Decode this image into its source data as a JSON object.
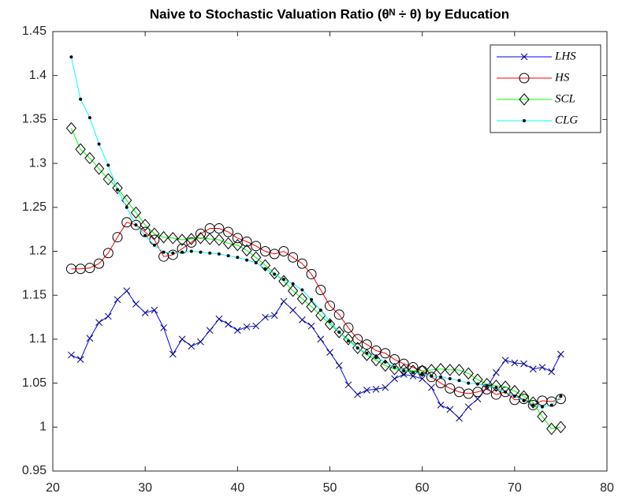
{
  "chart_data": {
    "type": "line",
    "title": "Naive to Stochastic Valuation Ratio (θᴺ ÷ θ) by Education",
    "x": [
      22,
      23,
      24,
      25,
      26,
      27,
      28,
      29,
      30,
      31,
      32,
      33,
      34,
      35,
      36,
      37,
      38,
      39,
      40,
      41,
      42,
      43,
      44,
      45,
      46,
      47,
      48,
      49,
      50,
      51,
      52,
      53,
      54,
      55,
      56,
      57,
      58,
      59,
      60,
      61,
      62,
      63,
      64,
      65,
      66,
      67,
      68,
      69,
      70,
      71,
      72,
      73,
      74,
      75
    ],
    "xlim": [
      20,
      80
    ],
    "xticks": [
      20,
      30,
      40,
      50,
      60,
      70,
      80
    ],
    "ylim": [
      0.95,
      1.45
    ],
    "yticks": [
      0.95,
      1,
      1.05,
      1.1,
      1.15,
      1.2,
      1.25,
      1.3,
      1.35,
      1.4,
      1.45
    ],
    "legend": "northeast",
    "series": [
      {
        "name": "LHS",
        "color": "#0000ff",
        "marker": "x",
        "marker_color": "#00007f",
        "values": [
          1.082,
          1.077,
          1.101,
          1.119,
          1.126,
          1.145,
          1.155,
          1.14,
          1.13,
          1.133,
          1.113,
          1.083,
          1.1,
          1.092,
          1.097,
          1.11,
          1.123,
          1.117,
          1.11,
          1.114,
          1.115,
          1.125,
          1.127,
          1.143,
          1.133,
          1.122,
          1.115,
          1.1,
          1.085,
          1.07,
          1.048,
          1.037,
          1.042,
          1.043,
          1.045,
          1.055,
          1.06,
          1.058,
          1.055,
          1.045,
          1.025,
          1.02,
          1.01,
          1.023,
          1.032,
          1.045,
          1.062,
          1.076,
          1.073,
          1.072,
          1.066,
          1.068,
          1.063,
          1.083
        ]
      },
      {
        "name": "HS",
        "color": "#ff0000",
        "marker": "o",
        "marker_color": "#000000",
        "values": [
          1.18,
          1.18,
          1.181,
          1.186,
          1.198,
          1.216,
          1.233,
          1.23,
          1.222,
          1.213,
          1.194,
          1.196,
          1.203,
          1.21,
          1.22,
          1.226,
          1.226,
          1.222,
          1.215,
          1.211,
          1.206,
          1.2,
          1.197,
          1.2,
          1.193,
          1.186,
          1.174,
          1.156,
          1.138,
          1.128,
          1.113,
          1.1,
          1.094,
          1.087,
          1.084,
          1.077,
          1.072,
          1.068,
          1.064,
          1.057,
          1.05,
          1.044,
          1.04,
          1.038,
          1.04,
          1.043,
          1.037,
          1.04,
          1.031,
          1.032,
          1.025,
          1.03,
          1.029,
          1.032
        ]
      },
      {
        "name": "SCL",
        "color": "#00ff00",
        "marker": "d",
        "marker_color": "#000000",
        "values": [
          1.34,
          1.316,
          1.306,
          1.294,
          1.282,
          1.272,
          1.258,
          1.244,
          1.23,
          1.22,
          1.216,
          1.215,
          1.213,
          1.214,
          1.215,
          1.214,
          1.213,
          1.209,
          1.207,
          1.201,
          1.193,
          1.184,
          1.175,
          1.166,
          1.155,
          1.146,
          1.137,
          1.127,
          1.117,
          1.108,
          1.1,
          1.09,
          1.082,
          1.076,
          1.07,
          1.066,
          1.065,
          1.064,
          1.064,
          1.065,
          1.066,
          1.065,
          1.065,
          1.061,
          1.054,
          1.049,
          1.047,
          1.046,
          1.041,
          1.035,
          1.028,
          1.012,
          0.998,
          1.0
        ]
      },
      {
        "name": "CLG",
        "color": "#00ffff",
        "marker": ".",
        "marker_color": "#000000",
        "values": [
          1.421,
          1.373,
          1.352,
          1.322,
          1.298,
          1.27,
          1.25,
          1.23,
          1.218,
          1.207,
          1.199,
          1.198,
          1.199,
          1.2,
          1.199,
          1.198,
          1.197,
          1.195,
          1.193,
          1.19,
          1.187,
          1.18,
          1.174,
          1.168,
          1.163,
          1.156,
          1.145,
          1.133,
          1.12,
          1.108,
          1.098,
          1.09,
          1.084,
          1.079,
          1.074,
          1.068,
          1.064,
          1.062,
          1.061,
          1.058,
          1.057,
          1.055,
          1.053,
          1.05,
          1.049,
          1.047,
          1.045,
          1.04,
          1.035,
          1.03,
          1.025,
          1.023,
          1.025,
          1.035
        ]
      }
    ]
  }
}
